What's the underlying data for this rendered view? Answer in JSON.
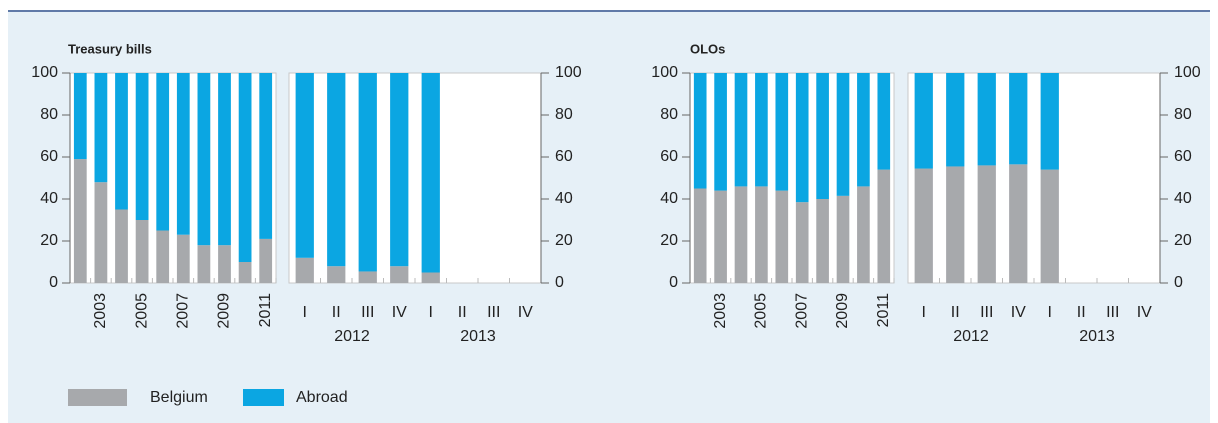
{
  "chart_data": [
    {
      "type": "bar",
      "stacked": true,
      "title": "Treasury bills",
      "ylim": [
        0,
        100
      ],
      "yticks": [
        0,
        20,
        40,
        60,
        80,
        100
      ],
      "annual": {
        "categories": [
          null,
          "2003",
          null,
          "2005",
          null,
          "2007",
          null,
          "2009",
          null,
          "2011"
        ],
        "series": [
          {
            "name": "Belgium",
            "color": "#a7a9ac",
            "values": [
              59,
              48,
              35,
              30,
              25,
              23,
              18,
              18,
              10,
              21
            ]
          },
          {
            "name": "Abroad",
            "color": "#0ba6e2",
            "values": [
              41,
              52,
              65,
              70,
              75,
              77,
              82,
              82,
              90,
              79
            ]
          }
        ]
      },
      "quarterly": {
        "categories": [
          "I",
          "II",
          "III",
          "IV",
          "I",
          "II",
          "III",
          "IV"
        ],
        "groups": [
          "2012",
          "2013"
        ],
        "series": [
          {
            "name": "Belgium",
            "color": "#a7a9ac",
            "values": [
              12,
              8,
              5.5,
              8,
              5,
              null,
              null,
              null
            ]
          },
          {
            "name": "Abroad",
            "color": "#0ba6e2",
            "values": [
              88,
              92,
              94.5,
              92,
              95,
              null,
              null,
              null
            ]
          }
        ]
      }
    },
    {
      "type": "bar",
      "stacked": true,
      "title": "OLOs",
      "ylim": [
        0,
        100
      ],
      "yticks": [
        0,
        20,
        40,
        60,
        80,
        100
      ],
      "annual": {
        "categories": [
          null,
          "2003",
          null,
          "2005",
          null,
          "2007",
          null,
          "2009",
          null,
          "2011"
        ],
        "series": [
          {
            "name": "Belgium",
            "color": "#a7a9ac",
            "values": [
              45,
              44,
              46,
              46,
              44,
              38.5,
              40,
              41.5,
              46,
              54
            ]
          },
          {
            "name": "Abroad",
            "color": "#0ba6e2",
            "values": [
              55,
              56,
              54,
              54,
              56,
              61.5,
              60,
              58.5,
              54,
              46
            ]
          }
        ]
      },
      "quarterly": {
        "categories": [
          "I",
          "II",
          "III",
          "IV",
          "I",
          "II",
          "III",
          "IV"
        ],
        "groups": [
          "2012",
          "2013"
        ],
        "series": [
          {
            "name": "Belgium",
            "color": "#a7a9ac",
            "values": [
              54.5,
              55.5,
              56,
              56.5,
              54,
              null,
              null,
              null
            ]
          },
          {
            "name": "Abroad",
            "color": "#0ba6e2",
            "values": [
              45.5,
              44.5,
              44,
              43.5,
              46,
              null,
              null,
              null
            ]
          }
        ]
      }
    }
  ]
}
